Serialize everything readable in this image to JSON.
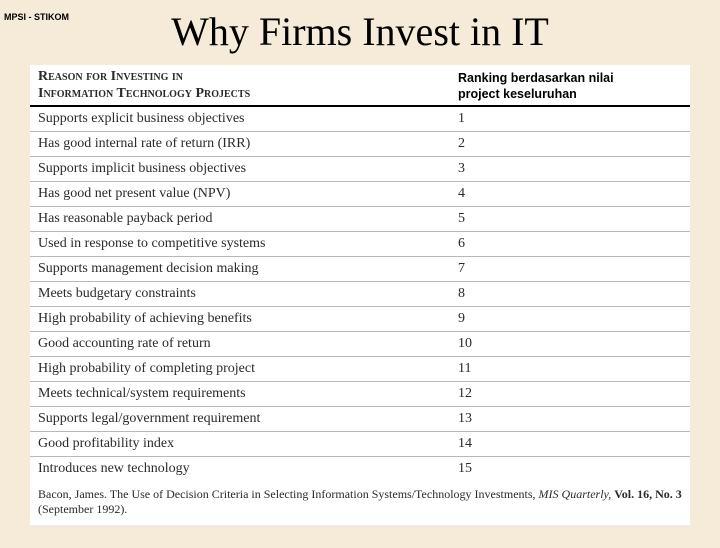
{
  "corner_label": "MPSI - STIKOM",
  "title": "Why Firms Invest in IT",
  "table": {
    "type": "table",
    "background_color": "#ffffff",
    "page_background": "#f5ebd8",
    "border_color": "#b8b8b8",
    "header_border_color": "#000000",
    "text_color": "#2a2a2a",
    "reason_fontsize": 14,
    "rank_fontsize": 14,
    "header_left_line1": "Reason for Investing in",
    "header_left_line2": "Information Technology Projects",
    "header_right_line1": "Ranking berdasarkan nilai",
    "header_right_line2": "project keseluruhan",
    "columns": [
      "reason",
      "rank"
    ],
    "column_widths": [
      "flex",
      "230px"
    ],
    "rows": [
      {
        "reason": "Supports explicit business objectives",
        "rank": "1"
      },
      {
        "reason": "Has good internal rate of return (IRR)",
        "rank": "2"
      },
      {
        "reason": "Supports implicit business objectives",
        "rank": "3"
      },
      {
        "reason": "Has good net present value (NPV)",
        "rank": "4"
      },
      {
        "reason": "Has reasonable payback period",
        "rank": "5"
      },
      {
        "reason": "Used in response to competitive systems",
        "rank": "6"
      },
      {
        "reason": "Supports management decision making",
        "rank": "7"
      },
      {
        "reason": "Meets budgetary constraints",
        "rank": "8"
      },
      {
        "reason": "High probability of achieving benefits",
        "rank": "9"
      },
      {
        "reason": "Good accounting rate of return",
        "rank": "10"
      },
      {
        "reason": "High probability of completing project",
        "rank": "11"
      },
      {
        "reason": "Meets technical/system requirements",
        "rank": "12"
      },
      {
        "reason": "Supports legal/government requirement",
        "rank": "13"
      },
      {
        "reason": "Good profitability index",
        "rank": "14"
      },
      {
        "reason": "Introduces new technology",
        "rank": "15"
      }
    ]
  },
  "citation": {
    "author": "Bacon, James.",
    "title_text": "The Use of Decision Criteria in Selecting Information Systems/Technology Investments,",
    "journal": "MIS Quarterly,",
    "vol": "Vol. 16, No. 3",
    "date": "(September 1992)."
  }
}
